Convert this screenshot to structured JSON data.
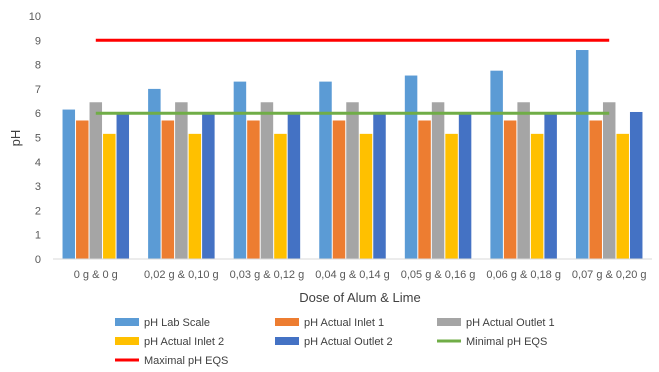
{
  "chart_data": {
    "type": "bar",
    "title": "",
    "xlabel": "Dose of Alum & Lime",
    "ylabel": "pH",
    "ylim": [
      0,
      10
    ],
    "yticks": [
      0,
      1,
      2,
      3,
      4,
      5,
      6,
      7,
      8,
      9,
      10
    ],
    "grid": false,
    "legend_position": "bottom",
    "categories": [
      "0 g & 0 g",
      "0,02 g & 0,10 g",
      "0,03 g & 0,12 g",
      "0,04 g & 0,14 g",
      "0,05 g & 0,16 g",
      "0,06 g & 0,18 g",
      "0,07 g & 0,20 g"
    ],
    "series": [
      {
        "name": "pH Lab Scale",
        "kind": "bar",
        "color": "#5B9BD5",
        "values": [
          6.15,
          7.0,
          7.3,
          7.3,
          7.55,
          7.75,
          8.6
        ]
      },
      {
        "name": "pH Actual Inlet 1",
        "kind": "bar",
        "color": "#ED7D31",
        "values": [
          5.7,
          5.7,
          5.7,
          5.7,
          5.7,
          5.7,
          5.7
        ]
      },
      {
        "name": "pH Actual Outlet 1",
        "kind": "bar",
        "color": "#A5A5A5",
        "values": [
          6.45,
          6.45,
          6.45,
          6.45,
          6.45,
          6.45,
          6.45
        ]
      },
      {
        "name": "pH Actual Inlet 2",
        "kind": "bar",
        "color": "#FFC000",
        "values": [
          5.15,
          5.15,
          5.15,
          5.15,
          5.15,
          5.15,
          5.15
        ]
      },
      {
        "name": "pH Actual Outlet 2",
        "kind": "bar",
        "color": "#4472C4",
        "values": [
          6.05,
          6.05,
          6.05,
          6.05,
          6.05,
          6.05,
          6.05
        ]
      },
      {
        "name": "Minimal pH EQS",
        "kind": "line",
        "color": "#70AD47",
        "values": [
          6,
          6,
          6,
          6,
          6,
          6,
          6
        ]
      },
      {
        "name": "Maximal pH EQS",
        "kind": "line",
        "color": "#FF0000",
        "values": [
          9,
          9,
          9,
          9,
          9,
          9,
          9
        ]
      }
    ]
  }
}
